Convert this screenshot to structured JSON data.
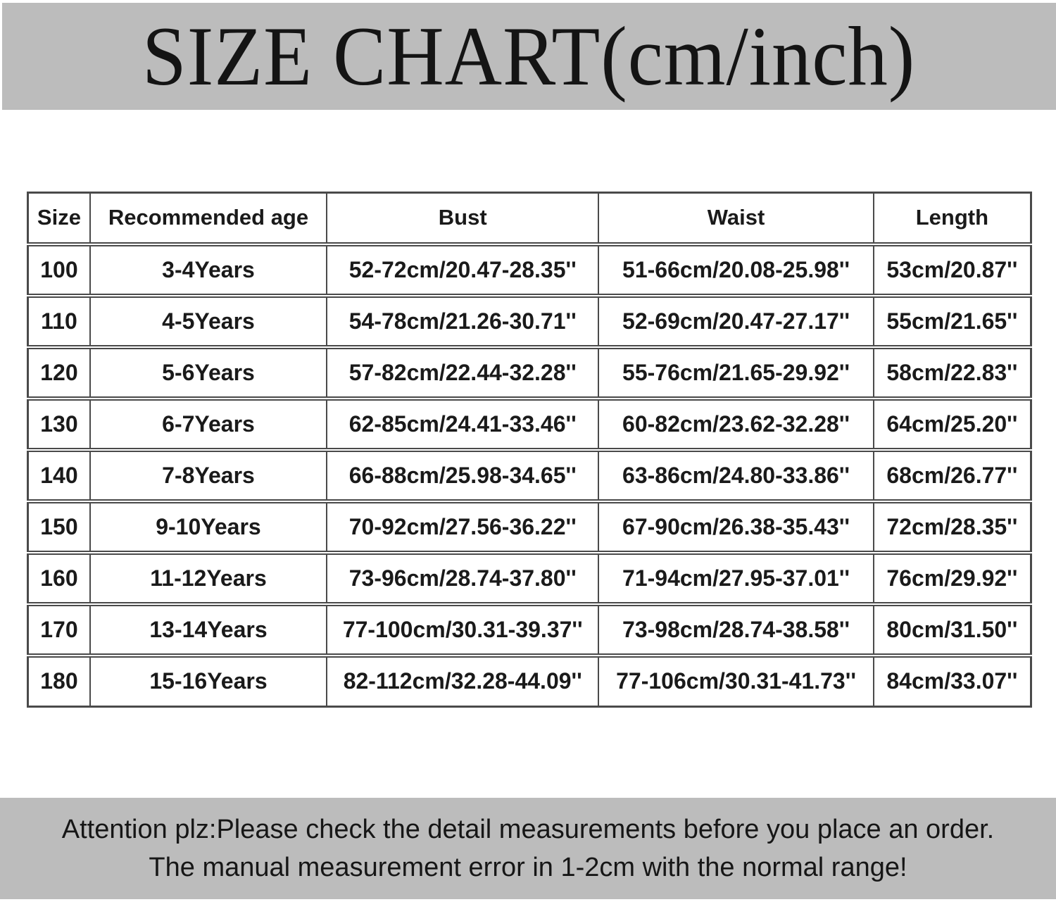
{
  "title": "SIZE CHART(cm/inch)",
  "table": {
    "headers": [
      "Size",
      "Recommended age",
      "Bust",
      "Waist",
      "Length"
    ],
    "rows": [
      [
        "100",
        "3-4Years",
        "52-72cm/20.47-28.35''",
        "51-66cm/20.08-25.98''",
        "53cm/20.87''"
      ],
      [
        "110",
        "4-5Years",
        "54-78cm/21.26-30.71''",
        "52-69cm/20.47-27.17''",
        "55cm/21.65''"
      ],
      [
        "120",
        "5-6Years",
        "57-82cm/22.44-32.28''",
        "55-76cm/21.65-29.92''",
        "58cm/22.83''"
      ],
      [
        "130",
        "6-7Years",
        "62-85cm/24.41-33.46''",
        "60-82cm/23.62-32.28''",
        "64cm/25.20''"
      ],
      [
        "140",
        "7-8Years",
        "66-88cm/25.98-34.65''",
        "63-86cm/24.80-33.86''",
        "68cm/26.77''"
      ],
      [
        "150",
        "9-10Years",
        "70-92cm/27.56-36.22''",
        "67-90cm/26.38-35.43''",
        "72cm/28.35''"
      ],
      [
        "160",
        "11-12Years",
        "73-96cm/28.74-37.80''",
        "71-94cm/27.95-37.01''",
        "76cm/29.92''"
      ],
      [
        "170",
        "13-14Years",
        "77-100cm/30.31-39.37''",
        "73-98cm/28.74-38.58''",
        "80cm/31.50''"
      ],
      [
        "180",
        "15-16Years",
        "82-112cm/32.28-44.09''",
        "77-106cm/30.31-41.73''",
        "84cm/33.07''"
      ]
    ]
  },
  "footer": {
    "line1": "Attention plz:Please check the detail measurements before you place an order.",
    "line2": "The manual measurement error in 1-2cm with the normal range!"
  },
  "colors": {
    "banner_gray": "#bcbcbc",
    "table_border": "#4a4a4a",
    "text": "#1a1a1a"
  }
}
